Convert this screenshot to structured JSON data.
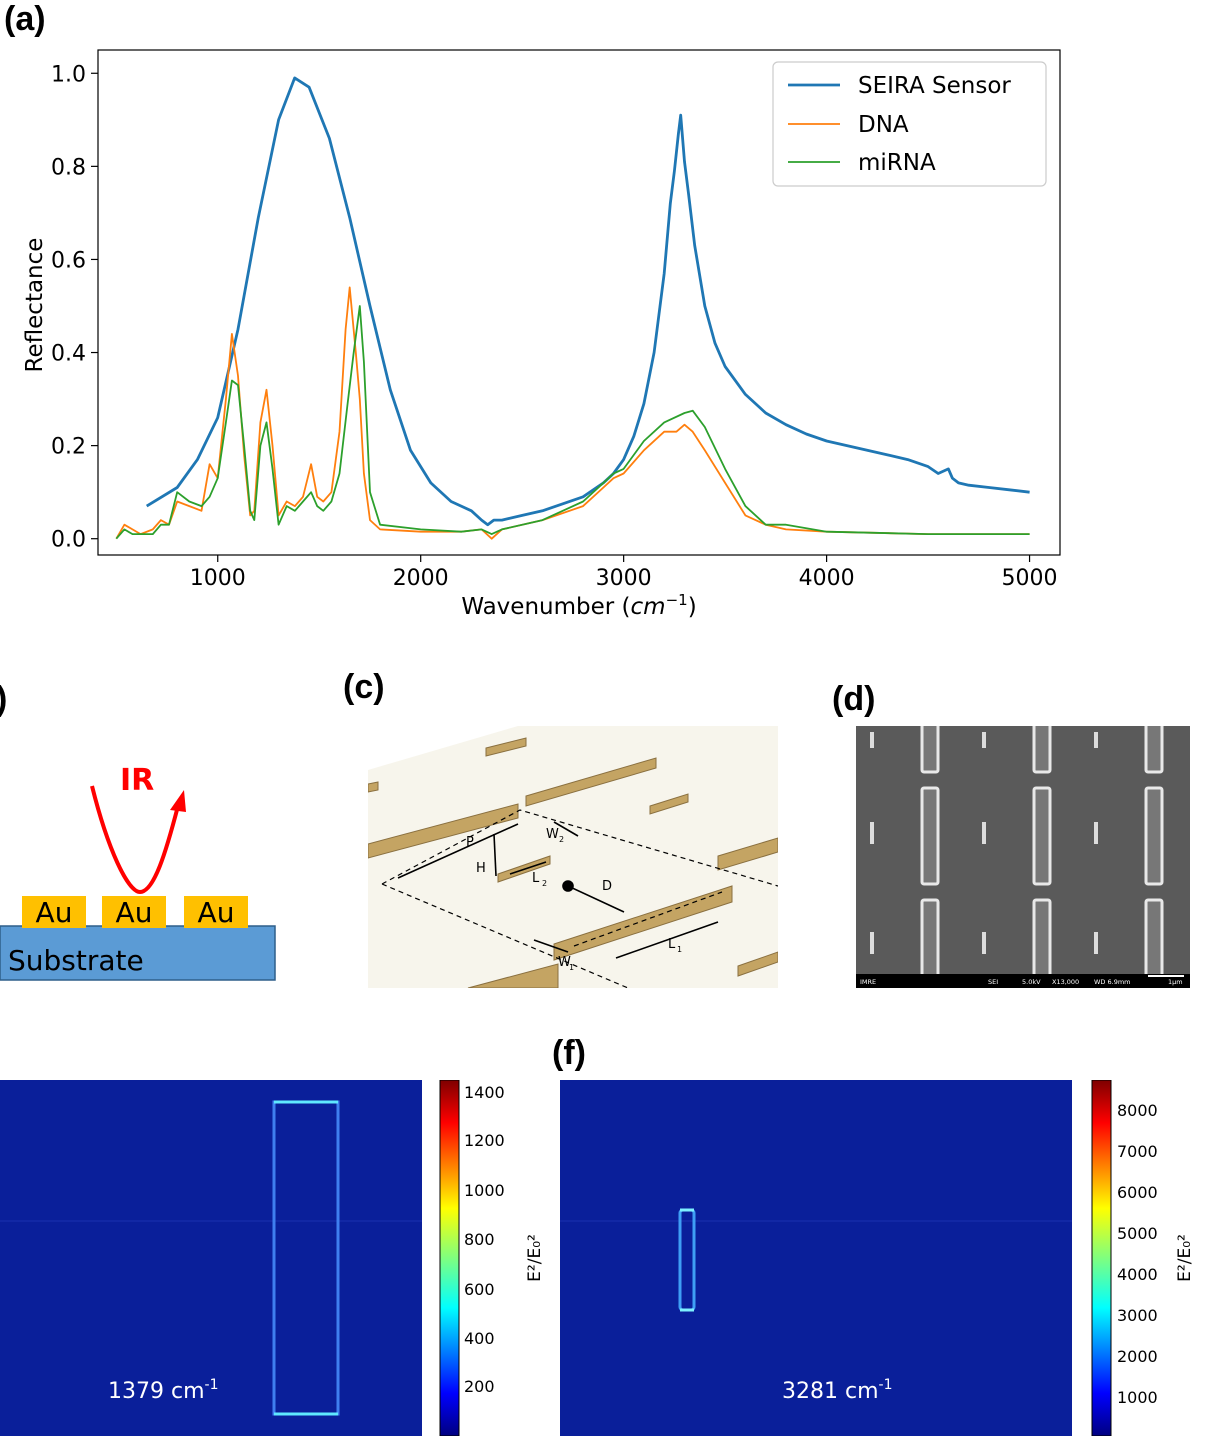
{
  "panel_labels": {
    "a": "(a)",
    "b": ")",
    "c": "(c)",
    "d": "(d)",
    "f": "(f)"
  },
  "chart_data": {
    "type": "line",
    "xlabel": "Wavenumber ",
    "xlabel_unit": "cm",
    "xlabel_exp": "−1",
    "ylabel": "Reflectance",
    "xlim": [
      410,
      5150
    ],
    "ylim": [
      -0.035,
      1.05
    ],
    "xticks": [
      1000,
      2000,
      3000,
      4000,
      5000
    ],
    "yticks": [
      0.0,
      0.2,
      0.4,
      0.6,
      0.8,
      1.0
    ],
    "grid": false,
    "legend_position": "top-right",
    "series": [
      {
        "name": "SEIRA Sensor",
        "color": "#1f77b4",
        "x": [
          650,
          800,
          900,
          1000,
          1100,
          1200,
          1300,
          1379,
          1450,
          1550,
          1650,
          1750,
          1850,
          1950,
          2050,
          2150,
          2250,
          2300,
          2330,
          2360,
          2400,
          2500,
          2600,
          2700,
          2800,
          2900,
          2950,
          3000,
          3050,
          3100,
          3150,
          3200,
          3230,
          3250,
          3270,
          3281,
          3300,
          3320,
          3350,
          3400,
          3450,
          3500,
          3600,
          3700,
          3800,
          3900,
          4000,
          4100,
          4200,
          4300,
          4400,
          4500,
          4550,
          4600,
          4620,
          4650,
          4700,
          4800,
          4900,
          5000
        ],
        "y": [
          0.07,
          0.11,
          0.17,
          0.26,
          0.45,
          0.69,
          0.9,
          0.99,
          0.97,
          0.86,
          0.69,
          0.5,
          0.32,
          0.19,
          0.12,
          0.08,
          0.06,
          0.04,
          0.03,
          0.04,
          0.04,
          0.05,
          0.06,
          0.075,
          0.09,
          0.12,
          0.14,
          0.17,
          0.22,
          0.29,
          0.4,
          0.57,
          0.72,
          0.79,
          0.87,
          0.91,
          0.81,
          0.74,
          0.63,
          0.5,
          0.42,
          0.37,
          0.31,
          0.27,
          0.245,
          0.225,
          0.21,
          0.2,
          0.19,
          0.18,
          0.17,
          0.155,
          0.14,
          0.15,
          0.13,
          0.12,
          0.115,
          0.11,
          0.105,
          0.1
        ]
      },
      {
        "name": "DNA",
        "color": "#ff7f0e",
        "x": [
          500,
          540,
          580,
          620,
          680,
          720,
          760,
          800,
          860,
          920,
          960,
          1000,
          1040,
          1070,
          1100,
          1130,
          1160,
          1180,
          1210,
          1240,
          1270,
          1300,
          1340,
          1380,
          1420,
          1460,
          1490,
          1520,
          1560,
          1600,
          1630,
          1650,
          1680,
          1700,
          1720,
          1750,
          1800,
          2000,
          2200,
          2300,
          2350,
          2400,
          2600,
          2800,
          2900,
          2950,
          3000,
          3100,
          3200,
          3260,
          3300,
          3340,
          3400,
          3500,
          3600,
          3700,
          3800,
          4000,
          4500,
          5000
        ],
        "y": [
          0.0,
          0.03,
          0.02,
          0.01,
          0.02,
          0.04,
          0.03,
          0.08,
          0.07,
          0.06,
          0.16,
          0.13,
          0.3,
          0.44,
          0.35,
          0.18,
          0.05,
          0.06,
          0.25,
          0.32,
          0.2,
          0.05,
          0.08,
          0.07,
          0.09,
          0.16,
          0.09,
          0.08,
          0.1,
          0.23,
          0.45,
          0.54,
          0.4,
          0.3,
          0.14,
          0.04,
          0.02,
          0.015,
          0.015,
          0.02,
          0.0,
          0.02,
          0.04,
          0.07,
          0.11,
          0.13,
          0.14,
          0.19,
          0.23,
          0.23,
          0.245,
          0.23,
          0.19,
          0.12,
          0.05,
          0.03,
          0.02,
          0.015,
          0.01,
          0.01
        ]
      },
      {
        "name": "miRNA",
        "color": "#2ca02c",
        "x": [
          500,
          540,
          580,
          620,
          680,
          720,
          760,
          800,
          860,
          920,
          960,
          1000,
          1040,
          1070,
          1100,
          1130,
          1160,
          1180,
          1210,
          1240,
          1270,
          1300,
          1340,
          1380,
          1420,
          1460,
          1490,
          1520,
          1560,
          1600,
          1640,
          1670,
          1700,
          1720,
          1750,
          1800,
          2000,
          2200,
          2300,
          2350,
          2400,
          2600,
          2800,
          2900,
          2950,
          3000,
          3100,
          3200,
          3300,
          3340,
          3400,
          3500,
          3600,
          3700,
          3800,
          4000,
          4500,
          5000
        ],
        "y": [
          0.0,
          0.02,
          0.01,
          0.01,
          0.01,
          0.03,
          0.03,
          0.1,
          0.08,
          0.07,
          0.09,
          0.13,
          0.25,
          0.34,
          0.33,
          0.2,
          0.06,
          0.04,
          0.2,
          0.25,
          0.15,
          0.03,
          0.07,
          0.06,
          0.08,
          0.1,
          0.07,
          0.06,
          0.08,
          0.14,
          0.29,
          0.4,
          0.5,
          0.38,
          0.1,
          0.03,
          0.02,
          0.015,
          0.02,
          0.01,
          0.02,
          0.04,
          0.08,
          0.12,
          0.14,
          0.15,
          0.21,
          0.25,
          0.27,
          0.275,
          0.24,
          0.15,
          0.07,
          0.03,
          0.03,
          0.015,
          0.01,
          0.01
        ]
      }
    ]
  },
  "schematic_b": {
    "ir_label": "IR",
    "au_labels": [
      "Au",
      "Au",
      "Au"
    ],
    "substrate_label": "Substrate"
  },
  "diagram_c": {
    "labels": [
      "P",
      "H",
      "W",
      "2",
      "L",
      "2",
      "D",
      "L",
      "1",
      "W",
      "1"
    ]
  },
  "sem_d": {
    "footer": [
      "IMRE",
      "SEI",
      "5.0kV",
      "X13,000",
      "WD 6.9mm",
      "1μm"
    ]
  },
  "field_e": {
    "wavenumber_label": "1379 cm",
    "wavenumber_exp": "-1",
    "colorbar_ticks": [
      "1400",
      "1200",
      "1000",
      "800",
      "600",
      "400",
      "200"
    ],
    "colorbar_label": "E²/E₀²"
  },
  "field_f": {
    "wavenumber_label": "3281 cm",
    "wavenumber_exp": "-1",
    "colorbar_ticks": [
      "8000",
      "7000",
      "6000",
      "5000",
      "4000",
      "3000",
      "2000",
      "1000"
    ],
    "colorbar_label": "E²/E₀²"
  }
}
